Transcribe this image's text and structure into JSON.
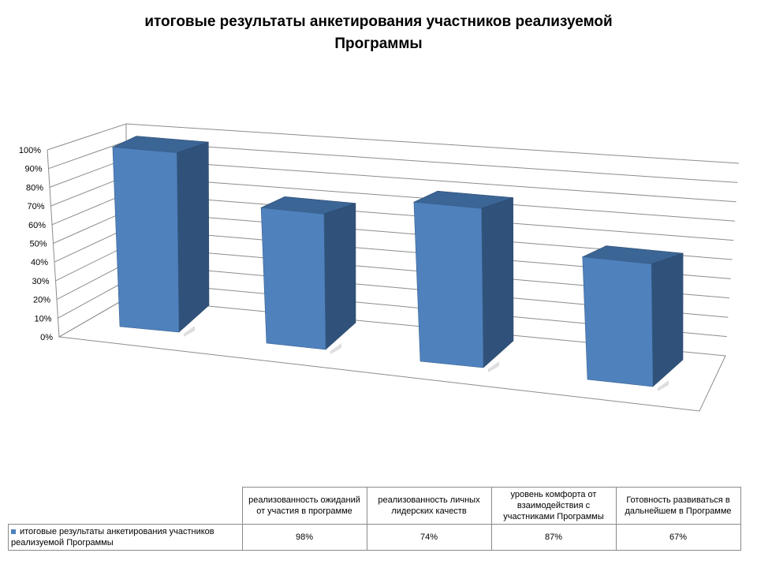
{
  "title": "итоговые результаты анкетирования участников реализуемой Программы",
  "colors": {
    "bar_front": "#4f81bd",
    "bar_side": "#30527a",
    "bar_top": "#3b6595",
    "grid": "#8c8c8c"
  },
  "chart_data": {
    "type": "bar",
    "title": "итоговые результаты анкетирования участников реализуемой Программы",
    "categories": [
      "реализованность ожиданий от участия в программе",
      "реализованность личных лидерских качеств",
      "уровень комфорта от взаимодействия с участниками Программы",
      "Готовность развиваться в дальнейшем в Программе"
    ],
    "series": [
      {
        "name": "итоговые результаты анкетирования участников реализуемой Программы",
        "values": [
          98,
          74,
          87,
          67
        ]
      }
    ],
    "value_labels": [
      "98%",
      "74%",
      "87%",
      "67%"
    ],
    "y_ticks": [
      "0%",
      "10%",
      "20%",
      "30%",
      "40%",
      "50%",
      "60%",
      "70%",
      "80%",
      "90%",
      "100%"
    ],
    "ylim": [
      0,
      100
    ],
    "grid": true,
    "legend": "data-table",
    "view": "3d-column"
  }
}
